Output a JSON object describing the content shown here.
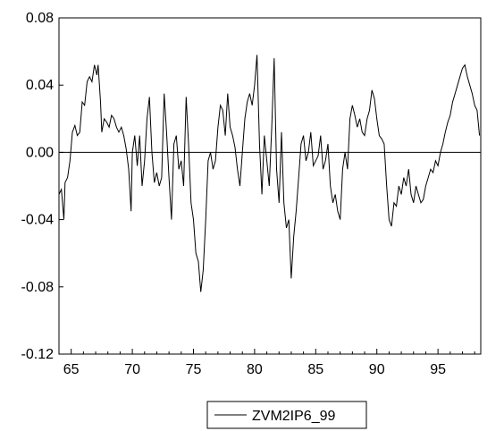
{
  "chart_data": {
    "type": "line",
    "xlabel": "",
    "ylabel": "",
    "xlim": [
      64.0,
      98.5
    ],
    "ylim": [
      -0.12,
      0.08
    ],
    "x_ticks": [
      65,
      70,
      75,
      80,
      85,
      90,
      95
    ],
    "y_ticks": [
      0.08,
      0.04,
      0.0,
      -0.04,
      -0.08,
      -0.12
    ],
    "x_tick_labels": [
      "65",
      "70",
      "75",
      "80",
      "85",
      "90",
      "95"
    ],
    "y_tick_labels": [
      "0.08",
      "0.04",
      "0.00",
      "-0.04",
      "-0.08",
      "-0.12"
    ],
    "zero_line": true,
    "legend_position": "bottom-center",
    "colors": {
      "series": "#000000",
      "axis": "#000000"
    },
    "series": [
      {
        "name": "ZVM2IP6_99",
        "points": [
          [
            64.0,
            -0.025
          ],
          [
            64.2,
            -0.022
          ],
          [
            64.4,
            -0.04
          ],
          [
            64.5,
            -0.018
          ],
          [
            64.7,
            -0.015
          ],
          [
            64.9,
            -0.005
          ],
          [
            65.1,
            0.012
          ],
          [
            65.3,
            0.016
          ],
          [
            65.5,
            0.01
          ],
          [
            65.7,
            0.012
          ],
          [
            65.9,
            0.03
          ],
          [
            66.1,
            0.028
          ],
          [
            66.3,
            0.042
          ],
          [
            66.5,
            0.045
          ],
          [
            66.7,
            0.042
          ],
          [
            66.9,
            0.052
          ],
          [
            67.1,
            0.046
          ],
          [
            67.2,
            0.052
          ],
          [
            67.4,
            0.03
          ],
          [
            67.5,
            0.012
          ],
          [
            67.7,
            0.02
          ],
          [
            67.9,
            0.018
          ],
          [
            68.1,
            0.015
          ],
          [
            68.3,
            0.022
          ],
          [
            68.5,
            0.02
          ],
          [
            68.7,
            0.015
          ],
          [
            68.9,
            0.012
          ],
          [
            69.1,
            0.015
          ],
          [
            69.3,
            0.01
          ],
          [
            69.5,
            0.002
          ],
          [
            69.7,
            -0.01
          ],
          [
            69.9,
            -0.035
          ],
          [
            70.0,
            0.0
          ],
          [
            70.2,
            0.01
          ],
          [
            70.4,
            -0.008
          ],
          [
            70.6,
            0.01
          ],
          [
            70.8,
            -0.02
          ],
          [
            71.0,
            -0.005
          ],
          [
            71.2,
            0.02
          ],
          [
            71.4,
            0.033
          ],
          [
            71.6,
            0.0
          ],
          [
            71.8,
            -0.018
          ],
          [
            72.0,
            -0.012
          ],
          [
            72.2,
            -0.02
          ],
          [
            72.4,
            -0.015
          ],
          [
            72.6,
            0.035
          ],
          [
            72.8,
            0.012
          ],
          [
            73.0,
            -0.015
          ],
          [
            73.2,
            -0.04
          ],
          [
            73.4,
            0.005
          ],
          [
            73.6,
            0.01
          ],
          [
            73.8,
            -0.01
          ],
          [
            74.0,
            -0.005
          ],
          [
            74.2,
            -0.02
          ],
          [
            74.4,
            0.033
          ],
          [
            74.6,
            0.005
          ],
          [
            74.8,
            -0.03
          ],
          [
            75.0,
            -0.04
          ],
          [
            75.2,
            -0.06
          ],
          [
            75.4,
            -0.065
          ],
          [
            75.6,
            -0.083
          ],
          [
            75.8,
            -0.07
          ],
          [
            76.0,
            -0.04
          ],
          [
            76.2,
            -0.005
          ],
          [
            76.4,
            0.0
          ],
          [
            76.6,
            -0.01
          ],
          [
            76.8,
            -0.005
          ],
          [
            77.0,
            0.015
          ],
          [
            77.2,
            0.028
          ],
          [
            77.4,
            0.025
          ],
          [
            77.6,
            0.01
          ],
          [
            77.8,
            0.035
          ],
          [
            78.0,
            0.015
          ],
          [
            78.2,
            0.01
          ],
          [
            78.4,
            0.003
          ],
          [
            78.6,
            -0.01
          ],
          [
            78.8,
            -0.02
          ],
          [
            79.0,
            0.0
          ],
          [
            79.2,
            0.02
          ],
          [
            79.4,
            0.03
          ],
          [
            79.6,
            0.035
          ],
          [
            79.8,
            0.028
          ],
          [
            80.0,
            0.04
          ],
          [
            80.2,
            0.058
          ],
          [
            80.4,
            0.005
          ],
          [
            80.6,
            -0.025
          ],
          [
            80.8,
            0.01
          ],
          [
            81.0,
            -0.005
          ],
          [
            81.2,
            -0.02
          ],
          [
            81.4,
            0.015
          ],
          [
            81.6,
            0.056
          ],
          [
            81.8,
            -0.01
          ],
          [
            82.0,
            -0.03
          ],
          [
            82.2,
            0.012
          ],
          [
            82.4,
            -0.03
          ],
          [
            82.6,
            -0.045
          ],
          [
            82.8,
            -0.04
          ],
          [
            83.0,
            -0.075
          ],
          [
            83.2,
            -0.05
          ],
          [
            83.4,
            -0.035
          ],
          [
            83.6,
            -0.015
          ],
          [
            83.8,
            0.005
          ],
          [
            84.0,
            0.01
          ],
          [
            84.2,
            -0.005
          ],
          [
            84.4,
            0.0
          ],
          [
            84.6,
            0.012
          ],
          [
            84.8,
            -0.008
          ],
          [
            85.0,
            -0.005
          ],
          [
            85.2,
            -0.002
          ],
          [
            85.4,
            0.01
          ],
          [
            85.6,
            -0.01
          ],
          [
            85.8,
            -0.005
          ],
          [
            86.0,
            0.005
          ],
          [
            86.2,
            -0.02
          ],
          [
            86.4,
            -0.03
          ],
          [
            86.6,
            -0.025
          ],
          [
            86.8,
            -0.035
          ],
          [
            87.0,
            -0.04
          ],
          [
            87.2,
            -0.01
          ],
          [
            87.4,
            0.0
          ],
          [
            87.6,
            -0.01
          ],
          [
            87.8,
            0.02
          ],
          [
            88.0,
            0.028
          ],
          [
            88.2,
            0.022
          ],
          [
            88.4,
            0.015
          ],
          [
            88.6,
            0.02
          ],
          [
            88.8,
            0.012
          ],
          [
            89.0,
            0.01
          ],
          [
            89.2,
            0.02
          ],
          [
            89.4,
            0.025
          ],
          [
            89.6,
            0.037
          ],
          [
            89.8,
            0.032
          ],
          [
            90.0,
            0.02
          ],
          [
            90.2,
            0.01
          ],
          [
            90.4,
            0.008
          ],
          [
            90.6,
            0.005
          ],
          [
            90.8,
            -0.02
          ],
          [
            91.0,
            -0.04
          ],
          [
            91.2,
            -0.044
          ],
          [
            91.4,
            -0.03
          ],
          [
            91.6,
            -0.032
          ],
          [
            91.8,
            -0.02
          ],
          [
            92.0,
            -0.025
          ],
          [
            92.2,
            -0.015
          ],
          [
            92.4,
            -0.02
          ],
          [
            92.6,
            -0.01
          ],
          [
            92.8,
            -0.025
          ],
          [
            93.0,
            -0.03
          ],
          [
            93.2,
            -0.02
          ],
          [
            93.4,
            -0.025
          ],
          [
            93.6,
            -0.03
          ],
          [
            93.8,
            -0.028
          ],
          [
            94.0,
            -0.02
          ],
          [
            94.2,
            -0.015
          ],
          [
            94.4,
            -0.01
          ],
          [
            94.6,
            -0.012
          ],
          [
            94.8,
            -0.005
          ],
          [
            95.0,
            -0.008
          ],
          [
            95.2,
            0.0
          ],
          [
            95.4,
            0.005
          ],
          [
            95.6,
            0.012
          ],
          [
            95.8,
            0.018
          ],
          [
            96.0,
            0.022
          ],
          [
            96.2,
            0.03
          ],
          [
            96.4,
            0.035
          ],
          [
            96.6,
            0.04
          ],
          [
            96.8,
            0.045
          ],
          [
            97.0,
            0.05
          ],
          [
            97.2,
            0.052
          ],
          [
            97.4,
            0.045
          ],
          [
            97.6,
            0.04
          ],
          [
            97.8,
            0.035
          ],
          [
            98.0,
            0.028
          ],
          [
            98.2,
            0.025
          ],
          [
            98.4,
            0.01
          ]
        ]
      }
    ]
  }
}
